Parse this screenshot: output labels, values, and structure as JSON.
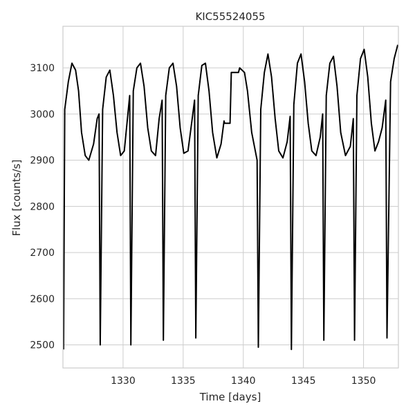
{
  "chart_data": {
    "type": "line",
    "title": "KIC55524055",
    "xlabel": "Time [days]",
    "ylabel": "Flux [counts/s]",
    "xlim": [
      1325.0,
      1352.9
    ],
    "ylim": [
      2450,
      3190
    ],
    "xticks": [
      1330,
      1335,
      1340,
      1345,
      1350
    ],
    "yticks": [
      2500,
      2600,
      2700,
      2800,
      2900,
      3000,
      3100
    ],
    "grid": true,
    "legend": "none",
    "series": [
      {
        "color": "#000000",
        "x": [
          1325.05,
          1325.15,
          1325.45,
          1325.75,
          1326.05,
          1326.3,
          1326.55,
          1326.85,
          1327.15,
          1327.55,
          1327.85,
          1328.0,
          1328.1,
          1328.3,
          1328.6,
          1328.9,
          1329.2,
          1329.5,
          1329.8,
          1330.1,
          1330.4,
          1330.55,
          1330.65,
          1330.85,
          1331.15,
          1331.45,
          1331.75,
          1332.05,
          1332.35,
          1332.7,
          1333.0,
          1333.25,
          1333.35,
          1333.55,
          1333.85,
          1334.15,
          1334.45,
          1334.75,
          1335.05,
          1335.4,
          1335.75,
          1335.95,
          1336.05,
          1336.25,
          1336.55,
          1336.85,
          1337.15,
          1337.45,
          1337.8,
          1338.15,
          1338.4,
          1338.45,
          1338.9,
          1339.0,
          1339.6,
          1339.7,
          1340.1,
          1340.35,
          1340.7,
          1341.0,
          1341.15,
          1341.25,
          1341.45,
          1341.75,
          1342.05,
          1342.35,
          1342.65,
          1342.95,
          1343.3,
          1343.65,
          1343.9,
          1344.0,
          1344.2,
          1344.5,
          1344.8,
          1345.1,
          1345.4,
          1345.7,
          1346.05,
          1346.4,
          1346.6,
          1346.7,
          1346.9,
          1347.2,
          1347.5,
          1347.8,
          1348.1,
          1348.5,
          1348.9,
          1349.15,
          1349.25,
          1349.45,
          1349.75,
          1350.05,
          1350.35,
          1350.65,
          1350.95,
          1351.25,
          1351.55,
          1351.85,
          1351.95,
          1352.25,
          1352.55,
          1352.85
        ],
        "y": [
          2490,
          3010,
          3070,
          3110,
          3095,
          3050,
          2960,
          2910,
          2900,
          2935,
          2990,
          3000,
          2500,
          3010,
          3080,
          3095,
          3040,
          2960,
          2910,
          2920,
          3000,
          3040,
          2500,
          3050,
          3100,
          3110,
          3060,
          2970,
          2920,
          2910,
          2990,
          3030,
          2510,
          3040,
          3100,
          3110,
          3060,
          2970,
          2915,
          2920,
          2990,
          3030,
          2515,
          3040,
          3105,
          3110,
          3050,
          2960,
          2905,
          2935,
          2985,
          2980,
          2980,
          3090,
          3090,
          3100,
          3090,
          3050,
          2960,
          2920,
          2900,
          2495,
          3010,
          3090,
          3130,
          3080,
          2990,
          2920,
          2905,
          2940,
          2995,
          2490,
          3020,
          3110,
          3130,
          3070,
          2980,
          2920,
          2910,
          2950,
          3000,
          2510,
          3040,
          3110,
          3125,
          3060,
          2960,
          2910,
          2930,
          2990,
          2510,
          3040,
          3120,
          3140,
          3080,
          2980,
          2920,
          2940,
          2970,
          3030,
          2515,
          3070,
          3120,
          3150
        ]
      }
    ]
  }
}
